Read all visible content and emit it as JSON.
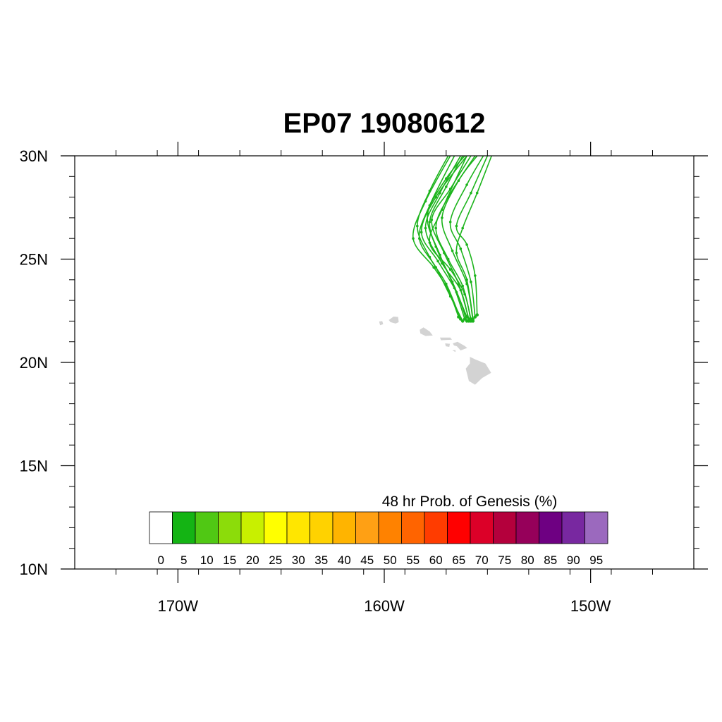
{
  "title": "EP07 19080612",
  "axes": {
    "lon_range": [
      -175,
      -145
    ],
    "lat_range": [
      10,
      30
    ],
    "x_ticks": [
      {
        "lon": -170,
        "label": "170W"
      },
      {
        "lon": -160,
        "label": "160W"
      },
      {
        "lon": -150,
        "label": "150W"
      }
    ],
    "y_ticks": [
      {
        "lat": 30,
        "label": "30N"
      },
      {
        "lat": 25,
        "label": "25N"
      },
      {
        "lat": 20,
        "label": "20N"
      },
      {
        "lat": 15,
        "label": "15N"
      },
      {
        "lat": 10,
        "label": "10N"
      }
    ],
    "x_minor_step": 2,
    "y_minor_step": 1
  },
  "colorbar": {
    "title": "48 hr Prob. of Genesis (%)",
    "labels": [
      "0",
      "5",
      "10",
      "15",
      "20",
      "25",
      "30",
      "35",
      "40",
      "45",
      "50",
      "55",
      "60",
      "65",
      "70",
      "75",
      "80",
      "85",
      "90",
      "95"
    ],
    "colors": [
      "#ffffff",
      "#14b414",
      "#50c814",
      "#8cdc0a",
      "#c8f000",
      "#ffff00",
      "#ffe600",
      "#ffd200",
      "#ffb400",
      "#ffa014",
      "#ff8200",
      "#ff6400",
      "#ff3c00",
      "#ff0000",
      "#dc0028",
      "#b4003c",
      "#96005a",
      "#6e0082",
      "#7828a0",
      "#9b69be"
    ]
  },
  "land_color": "#d3d3d3",
  "track_color": "#1cb41c",
  "islands": [
    {
      "name": "Kauai",
      "points": [
        [
          -159.78,
          22.05
        ],
        [
          -159.55,
          22.22
        ],
        [
          -159.33,
          22.2
        ],
        [
          -159.3,
          21.95
        ],
        [
          -159.45,
          21.88
        ],
        [
          -159.7,
          21.95
        ]
      ]
    },
    {
      "name": "Niihau",
      "points": [
        [
          -160.25,
          21.98
        ],
        [
          -160.1,
          22.0
        ],
        [
          -160.05,
          21.85
        ],
        [
          -160.2,
          21.8
        ]
      ]
    },
    {
      "name": "Oahu",
      "points": [
        [
          -158.28,
          21.58
        ],
        [
          -158.1,
          21.7
        ],
        [
          -157.8,
          21.5
        ],
        [
          -157.65,
          21.3
        ],
        [
          -158.0,
          21.28
        ],
        [
          -158.25,
          21.4
        ]
      ]
    },
    {
      "name": "Molokai",
      "points": [
        [
          -157.3,
          21.2
        ],
        [
          -156.8,
          21.2
        ],
        [
          -156.72,
          21.1
        ],
        [
          -157.25,
          21.07
        ]
      ]
    },
    {
      "name": "Maui",
      "points": [
        [
          -156.68,
          20.92
        ],
        [
          -156.45,
          21.0
        ],
        [
          -156.1,
          20.8
        ],
        [
          -155.98,
          20.7
        ],
        [
          -156.3,
          20.58
        ],
        [
          -156.48,
          20.78
        ],
        [
          -156.62,
          20.82
        ]
      ]
    },
    {
      "name": "Lanai",
      "points": [
        [
          -157.05,
          20.92
        ],
        [
          -156.82,
          20.9
        ],
        [
          -156.85,
          20.75
        ],
        [
          -157.02,
          20.78
        ]
      ]
    },
    {
      "name": "Kahoolawe",
      "points": [
        [
          -156.7,
          20.58
        ],
        [
          -156.55,
          20.6
        ],
        [
          -156.55,
          20.5
        ]
      ]
    },
    {
      "name": "Hawaii",
      "points": [
        [
          -155.85,
          20.27
        ],
        [
          -155.6,
          20.15
        ],
        [
          -155.1,
          19.95
        ],
        [
          -154.82,
          19.5
        ],
        [
          -155.25,
          19.25
        ],
        [
          -155.6,
          18.92
        ],
        [
          -155.9,
          19.1
        ],
        [
          -156.05,
          19.7
        ],
        [
          -155.85,
          19.95
        ]
      ]
    }
  ],
  "tracks": [
    {
      "points": [
        [
          -155.8,
          22.1
        ],
        [
          -156.2,
          23.7
        ],
        [
          -156.9,
          25.0
        ],
        [
          -157.5,
          26.5
        ],
        [
          -156.9,
          28.0
        ],
        [
          -155.6,
          30.0
        ]
      ]
    },
    {
      "points": [
        [
          -156.0,
          22.0
        ],
        [
          -156.5,
          23.4
        ],
        [
          -157.4,
          24.9
        ],
        [
          -158.2,
          26.3
        ],
        [
          -157.5,
          28.0
        ],
        [
          -156.0,
          30.0
        ]
      ]
    },
    {
      "points": [
        [
          -155.9,
          22.0
        ],
        [
          -156.3,
          23.5
        ],
        [
          -157.2,
          24.8
        ],
        [
          -158.0,
          26.5
        ],
        [
          -157.3,
          28.2
        ],
        [
          -156.3,
          30.0
        ]
      ]
    },
    {
      "points": [
        [
          -156.1,
          22.1
        ],
        [
          -156.6,
          23.6
        ],
        [
          -157.3,
          25.2
        ],
        [
          -157.8,
          26.8
        ],
        [
          -157.0,
          28.5
        ],
        [
          -156.2,
          30.0
        ]
      ]
    },
    {
      "points": [
        [
          -155.7,
          22.0
        ],
        [
          -156.0,
          23.8
        ],
        [
          -156.7,
          25.4
        ],
        [
          -157.2,
          27.0
        ],
        [
          -156.4,
          28.8
        ],
        [
          -155.5,
          30.0
        ]
      ]
    },
    {
      "points": [
        [
          -155.6,
          22.2
        ],
        [
          -155.8,
          23.9
        ],
        [
          -156.3,
          25.5
        ],
        [
          -156.8,
          26.8
        ],
        [
          -156.0,
          28.6
        ],
        [
          -155.2,
          30.0
        ]
      ]
    },
    {
      "points": [
        [
          -156.4,
          22.2
        ],
        [
          -156.9,
          23.5
        ],
        [
          -157.6,
          24.6
        ],
        [
          -158.6,
          26.0
        ],
        [
          -158.0,
          27.8
        ],
        [
          -156.8,
          30.0
        ]
      ]
    },
    {
      "points": [
        [
          -155.5,
          22.3
        ],
        [
          -155.6,
          24.2
        ],
        [
          -156.0,
          25.7
        ],
        [
          -156.5,
          26.6
        ],
        [
          -155.8,
          28.2
        ],
        [
          -155.0,
          30.0
        ]
      ]
    },
    {
      "points": [
        [
          -156.2,
          22.0
        ],
        [
          -156.8,
          23.2
        ],
        [
          -157.5,
          24.6
        ],
        [
          -158.3,
          26.0
        ],
        [
          -157.8,
          27.6
        ],
        [
          -156.6,
          30.0
        ]
      ]
    },
    {
      "points": [
        [
          -155.9,
          22.1
        ],
        [
          -156.4,
          23.8
        ],
        [
          -157.1,
          25.3
        ],
        [
          -157.7,
          26.9
        ],
        [
          -156.8,
          28.4
        ],
        [
          -155.8,
          30.0
        ]
      ]
    },
    {
      "points": [
        [
          -156.0,
          22.2
        ],
        [
          -156.7,
          23.9
        ],
        [
          -157.5,
          25.6
        ],
        [
          -157.9,
          27.2
        ],
        [
          -157.0,
          28.9
        ],
        [
          -156.1,
          30.0
        ]
      ]
    },
    {
      "points": [
        [
          -155.8,
          22.0
        ],
        [
          -156.1,
          23.3
        ],
        [
          -156.8,
          24.5
        ],
        [
          -157.8,
          25.8
        ],
        [
          -157.2,
          27.4
        ],
        [
          -156.0,
          30.0
        ]
      ]
    },
    {
      "points": [
        [
          -156.3,
          22.1
        ],
        [
          -157.0,
          23.8
        ],
        [
          -157.8,
          25.1
        ],
        [
          -158.4,
          26.6
        ],
        [
          -157.8,
          28.3
        ],
        [
          -156.9,
          30.0
        ]
      ]
    },
    {
      "points": [
        [
          -155.7,
          22.1
        ],
        [
          -156.0,
          24.0
        ],
        [
          -156.5,
          25.3
        ],
        [
          -156.2,
          26.5
        ],
        [
          -155.5,
          28.2
        ],
        [
          -154.8,
          30.0
        ]
      ]
    }
  ]
}
